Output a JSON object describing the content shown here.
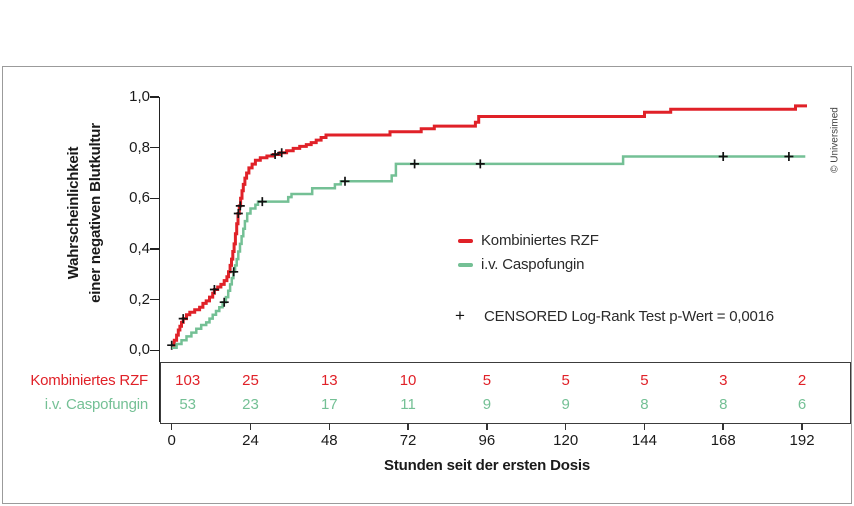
{
  "copyright": "© Universimed",
  "chart_data": {
    "type": "line",
    "subtype": "kaplan-meier-cumulative-incidence-steps",
    "title": "",
    "xlabel": "Stunden seit der ersten Dosis",
    "ylabel_lines": [
      "Wahrscheinlichkeit",
      "einer negativen Blutkultur"
    ],
    "xlim": [
      0,
      192
    ],
    "ylim": [
      0,
      1
    ],
    "grid": false,
    "legend_position": "center-right",
    "xticks": [
      0,
      24,
      48,
      72,
      96,
      120,
      144,
      168,
      192
    ],
    "yticks": [
      1.0,
      0.8,
      0.6,
      0.4,
      0.2,
      0.0
    ],
    "ytick_labels": [
      "1,0",
      "0,8",
      "0,6",
      "0,4",
      "0,2",
      "0,0"
    ],
    "censored_symbol": "+",
    "censored_note": "CENSORED Log-Rank Test p-Wert = 0,0016",
    "legend": [
      {
        "name": "Kombiniertes RZF",
        "color": "#e02128"
      },
      {
        "name": "i.v. Caspofungin",
        "color": "#74c095"
      }
    ],
    "series": [
      {
        "name": "Kombiniertes RZF",
        "color": "#e02128",
        "steps": [
          [
            0,
            0.02
          ],
          [
            0.8,
            0.04
          ],
          [
            1.5,
            0.06
          ],
          [
            2,
            0.08
          ],
          [
            2.5,
            0.095
          ],
          [
            3,
            0.11
          ],
          [
            3.5,
            0.125
          ],
          [
            4.5,
            0.14
          ],
          [
            5.5,
            0.15
          ],
          [
            7,
            0.16
          ],
          [
            8.5,
            0.17
          ],
          [
            9.5,
            0.185
          ],
          [
            10.5,
            0.195
          ],
          [
            11.5,
            0.21
          ],
          [
            12.5,
            0.225
          ],
          [
            13,
            0.24
          ],
          [
            14,
            0.25
          ],
          [
            15,
            0.26
          ],
          [
            16,
            0.275
          ],
          [
            16.8,
            0.29
          ],
          [
            17.3,
            0.31
          ],
          [
            17.8,
            0.335
          ],
          [
            18.2,
            0.36
          ],
          [
            18.6,
            0.39
          ],
          [
            19,
            0.42
          ],
          [
            19.4,
            0.46
          ],
          [
            19.8,
            0.5
          ],
          [
            20.2,
            0.54
          ],
          [
            20.6,
            0.57
          ],
          [
            21,
            0.6
          ],
          [
            21.4,
            0.63
          ],
          [
            21.8,
            0.655
          ],
          [
            22.3,
            0.68
          ],
          [
            22.8,
            0.7
          ],
          [
            23.5,
            0.72
          ],
          [
            24.5,
            0.735
          ],
          [
            25.5,
            0.75
          ],
          [
            27,
            0.76
          ],
          [
            29,
            0.767
          ],
          [
            31,
            0.773
          ],
          [
            33,
            0.78
          ],
          [
            35,
            0.788
          ],
          [
            37,
            0.797
          ],
          [
            39,
            0.805
          ],
          [
            41,
            0.812
          ],
          [
            42.5,
            0.82
          ],
          [
            44,
            0.83
          ],
          [
            45.5,
            0.84
          ],
          [
            47,
            0.85
          ],
          [
            66.5,
            0.863
          ],
          [
            76,
            0.875
          ],
          [
            80,
            0.885
          ],
          [
            92.5,
            0.9
          ],
          [
            93.5,
            0.923
          ],
          [
            144,
            0.94
          ],
          [
            152,
            0.952
          ],
          [
            190,
            0.965
          ],
          [
            193.5,
            0.965
          ]
        ],
        "censored": [
          [
            0,
            0.02
          ],
          [
            3.5,
            0.125
          ],
          [
            13,
            0.24
          ],
          [
            20.3,
            0.54
          ],
          [
            20.9,
            0.57
          ],
          [
            31.5,
            0.773
          ],
          [
            33.5,
            0.78
          ]
        ]
      },
      {
        "name": "i.v. Caspofungin",
        "color": "#74c095",
        "steps": [
          [
            0,
            0.01
          ],
          [
            1.5,
            0.025
          ],
          [
            3,
            0.04
          ],
          [
            4.5,
            0.055
          ],
          [
            6,
            0.07
          ],
          [
            7.5,
            0.085
          ],
          [
            9,
            0.1
          ],
          [
            10.5,
            0.11
          ],
          [
            11.5,
            0.125
          ],
          [
            12.5,
            0.14
          ],
          [
            13.5,
            0.155
          ],
          [
            14.5,
            0.17
          ],
          [
            15.5,
            0.19
          ],
          [
            16.5,
            0.21
          ],
          [
            17.2,
            0.235
          ],
          [
            17.8,
            0.26
          ],
          [
            18.3,
            0.285
          ],
          [
            18.8,
            0.31
          ],
          [
            19.3,
            0.335
          ],
          [
            19.8,
            0.36
          ],
          [
            20.3,
            0.39
          ],
          [
            20.8,
            0.42
          ],
          [
            21.3,
            0.45
          ],
          [
            21.8,
            0.48
          ],
          [
            22.3,
            0.51
          ],
          [
            23,
            0.54
          ],
          [
            24,
            0.56
          ],
          [
            25.5,
            0.575
          ],
          [
            26.3,
            0.587
          ],
          [
            35.5,
            0.605
          ],
          [
            36.5,
            0.617
          ],
          [
            42.8,
            0.64
          ],
          [
            49.7,
            0.655
          ],
          [
            51.5,
            0.667
          ],
          [
            67,
            0.69
          ],
          [
            68.3,
            0.736
          ],
          [
            137.5,
            0.765
          ],
          [
            193,
            0.765
          ]
        ],
        "censored": [
          [
            16,
            0.19
          ],
          [
            18.9,
            0.31
          ],
          [
            27.6,
            0.587
          ],
          [
            52.8,
            0.667
          ],
          [
            74,
            0.736
          ],
          [
            94,
            0.736
          ],
          [
            168,
            0.765
          ],
          [
            188,
            0.765
          ]
        ]
      }
    ],
    "risk_table": {
      "rows": [
        {
          "label": "Kombiniertes RZF",
          "color": "#e02128",
          "values": [
            103,
            25,
            13,
            10,
            5,
            5,
            5,
            3,
            2
          ]
        },
        {
          "label": "i.v. Caspofungin",
          "color": "#74c095",
          "values": [
            53,
            23,
            17,
            11,
            9,
            9,
            8,
            8,
            6
          ]
        }
      ]
    }
  }
}
